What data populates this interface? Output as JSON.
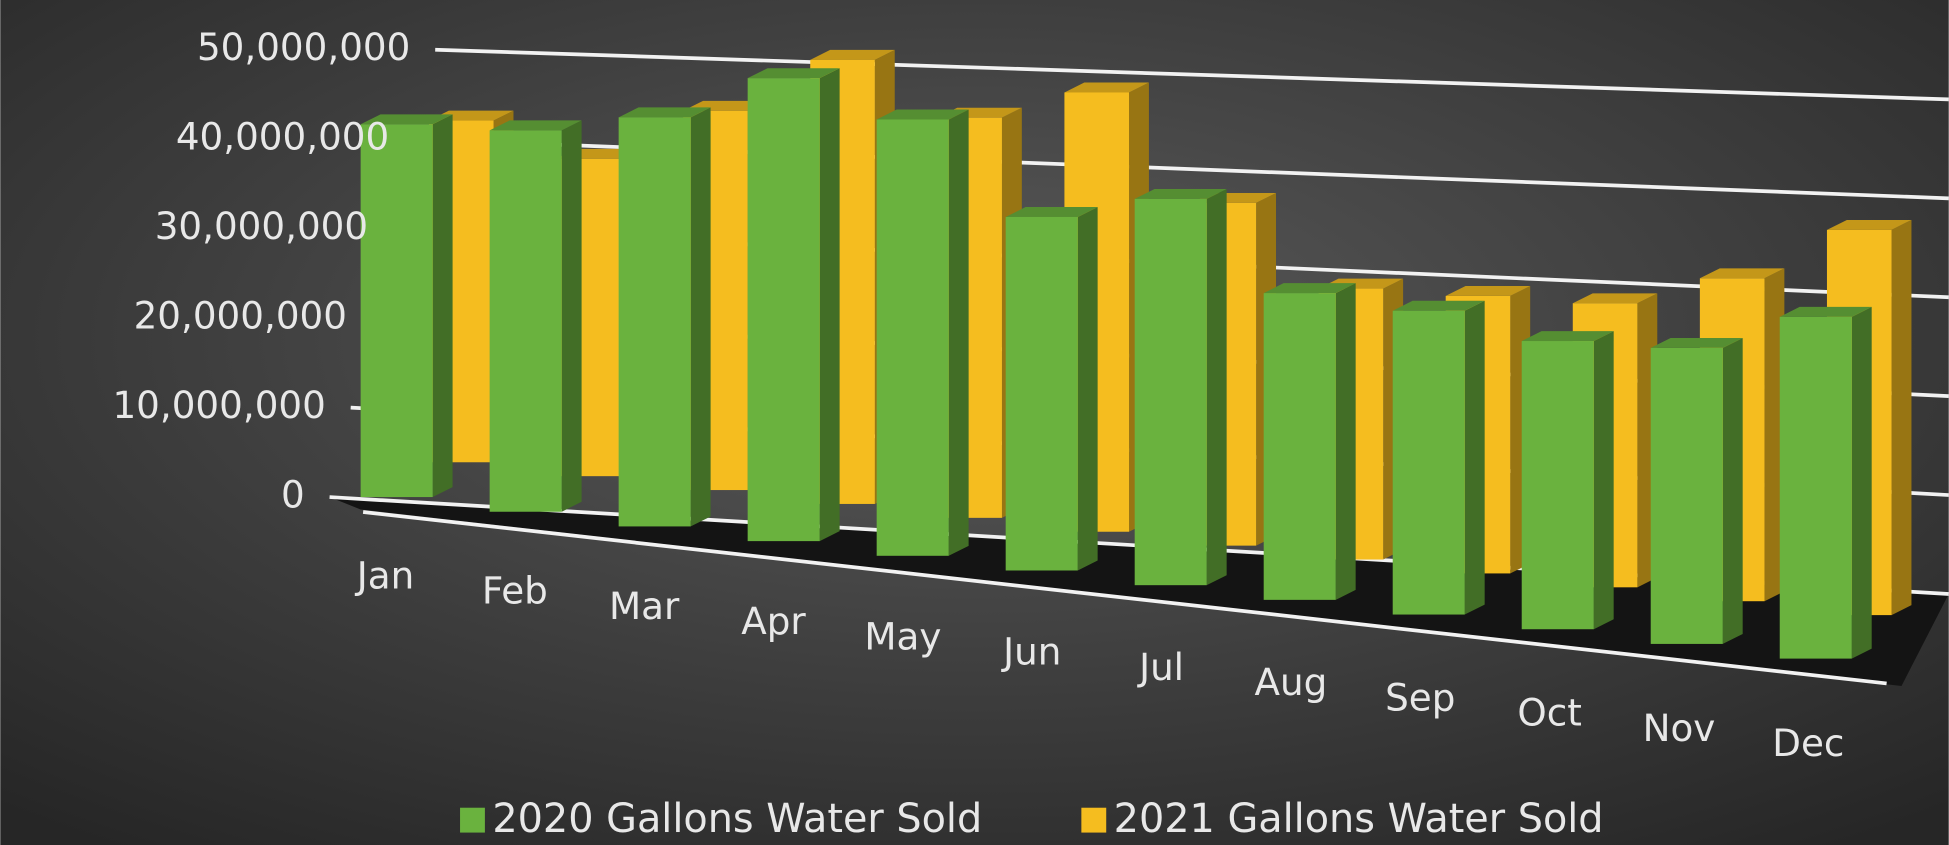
{
  "chart_data": {
    "type": "bar3d",
    "categories": [
      "Jan",
      "Feb",
      "Mar",
      "Apr",
      "May",
      "Jun",
      "Jul",
      "Aug",
      "Sep",
      "Oct",
      "Nov",
      "Dec"
    ],
    "series": [
      {
        "name": "2020 Gallons Water Sold",
        "color": "#6ab23e",
        "values": [
          41000000,
          40500000,
          42000000,
          46000000,
          42000000,
          33000000,
          35000000,
          27000000,
          26000000,
          24000000,
          24000000,
          27000000
        ]
      },
      {
        "name": "2021 Gallons Water Sold",
        "color": "#f5bd1f",
        "values": [
          41000000,
          37000000,
          43000000,
          49000000,
          43000000,
          46000000,
          35000000,
          27000000,
          27000000,
          27000000,
          30000000,
          35000000
        ]
      }
    ],
    "ylim": [
      0,
      50000000
    ],
    "yticks": [
      0,
      {
        "value": 10000000,
        "label": "10,000,000"
      },
      {
        "value": 20000000,
        "label": "20,000,000"
      },
      {
        "value": 30000000,
        "label": "30,000,000"
      },
      {
        "value": 40000000,
        "label": "40,000,000"
      },
      {
        "value": 50000000,
        "label": "50,000,000"
      }
    ],
    "grid": true,
    "legend": "bottom"
  }
}
